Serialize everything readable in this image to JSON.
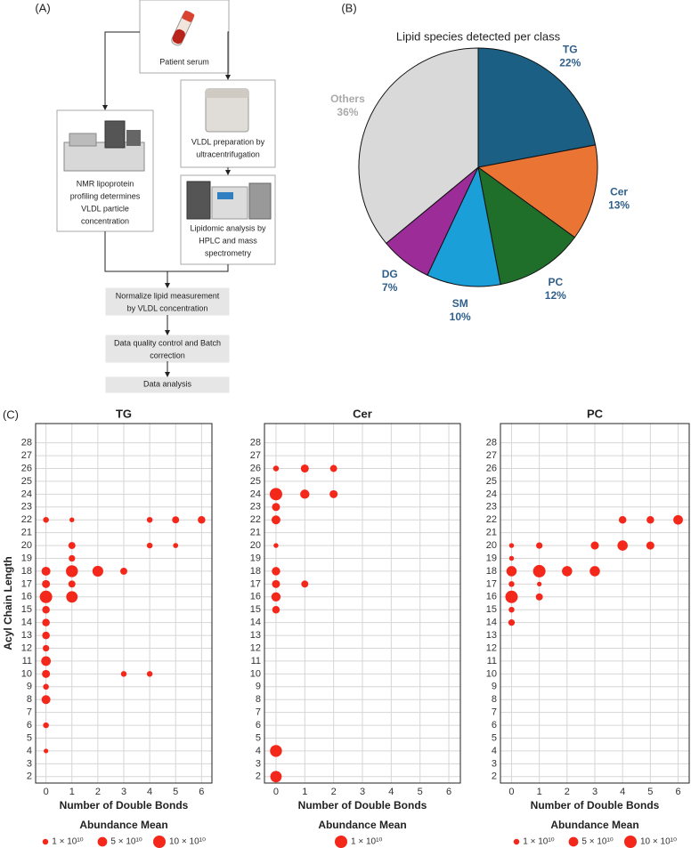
{
  "panel_labels": [
    "(A)",
    "(B)",
    "(C)"
  ],
  "diagram": {
    "nodes": [
      {
        "lines": [
          "Patient serum"
        ]
      },
      {
        "lines": [
          "NMR lipoprotein",
          "profiling determines",
          "VLDL particle",
          "concentration"
        ]
      },
      {
        "lines": [
          "VLDL preparation by",
          "ultracentrifugation"
        ]
      },
      {
        "lines": [
          "Lipidomic analysis by",
          "HPLC and mass",
          "spectrometry"
        ]
      },
      {
        "lines": [
          "Normalize lipid measurement",
          "by VLDL concentration"
        ]
      },
      {
        "lines": [
          "Data quality control and Batch",
          "correction"
        ]
      },
      {
        "lines": [
          "Data analysis"
        ]
      }
    ]
  },
  "chart_data": [
    {
      "type": "pie",
      "title": "Lipid species detected per class",
      "categories": [
        "TG",
        "Cer",
        "PC",
        "SM",
        "DG",
        "Others"
      ],
      "values": [
        22,
        13,
        12,
        10,
        7,
        36
      ],
      "value_labels": [
        "22%",
        "13%",
        "12%",
        "10%",
        "7%",
        "36%"
      ],
      "colors": [
        "#1b5f85",
        "#ea7434",
        "#1f6f2b",
        "#1a9fd8",
        "#9c2c98",
        "#d9d9d9"
      ],
      "label_colors": [
        "#2f5f8a",
        "#2f5f8a",
        "#2f5f8a",
        "#2f5f8a",
        "#2f5f8a",
        "#aaaaaa"
      ]
    },
    {
      "type": "bubble",
      "title": "TG",
      "x_label": "Number of Double Bonds",
      "y_label": "Acyl Chain Length",
      "color": "#f4271b",
      "grid": true,
      "xlim": [
        -0.4,
        6.4
      ],
      "xticks": [
        0,
        1,
        2,
        3,
        4,
        5,
        6
      ],
      "ylim": [
        1.5,
        29.5
      ],
      "yticks": [
        2,
        3,
        4,
        5,
        6,
        7,
        8,
        9,
        10,
        11,
        12,
        13,
        14,
        15,
        16,
        17,
        18,
        19,
        20,
        21,
        22,
        23,
        24,
        25,
        26,
        27,
        28
      ],
      "x": [
        0,
        1,
        4,
        5,
        6,
        1,
        4,
        5,
        1,
        0,
        1,
        2,
        3,
        0,
        1,
        0,
        1,
        0,
        0,
        0,
        0,
        0,
        0,
        0,
        0,
        0,
        0,
        3,
        4
      ],
      "values": [
        22,
        22,
        22,
        22,
        22,
        20,
        20,
        20,
        19,
        18,
        18,
        18,
        18,
        17,
        17,
        16,
        16,
        15,
        14,
        13,
        12,
        11,
        10,
        9,
        8,
        6,
        4,
        10,
        10
      ],
      "sizes": [
        10000000000.0,
        5000000000.0,
        10000000000.0,
        20000000000.0,
        25000000000.0,
        20000000000.0,
        10000000000.0,
        6000000000.0,
        15000000000.0,
        40000000000.0,
        90000000000.0,
        70000000000.0,
        20000000000.0,
        30000000000.0,
        20000000000.0,
        100000000000.0,
        80000000000.0,
        25000000000.0,
        25000000000.0,
        25000000000.0,
        15000000000.0,
        50000000000.0,
        30000000000.0,
        10000000000.0,
        40000000000.0,
        10000000000.0,
        4000000000.0,
        10000000000.0,
        10000000000.0
      ],
      "size_legend": {
        "title": "Abundance Mean",
        "values": [
          10000000000.0,
          50000000000.0,
          100000000000.0
        ],
        "labels": [
          "1 × 10¹⁰",
          "5 × 10¹⁰",
          "10 × 10¹⁰"
        ]
      }
    },
    {
      "type": "bubble",
      "title": "Cer",
      "x_label": "Number of Double Bonds",
      "color": "#f4271b",
      "grid": true,
      "xlim": [
        -0.4,
        6.4
      ],
      "xticks": [
        0,
        1,
        2,
        3,
        4,
        5,
        6
      ],
      "ylim": [
        1.5,
        29.5
      ],
      "yticks": [
        2,
        3,
        4,
        5,
        6,
        7,
        8,
        9,
        10,
        11,
        12,
        13,
        14,
        15,
        16,
        17,
        18,
        19,
        20,
        21,
        22,
        23,
        24,
        25,
        26,
        27,
        28
      ],
      "x": [
        0,
        1,
        2,
        0,
        1,
        2,
        0,
        0,
        0,
        0,
        1,
        0,
        0,
        0,
        0,
        0
      ],
      "values": [
        26,
        26,
        26,
        24,
        24,
        24,
        23,
        22,
        20,
        18,
        17,
        17,
        16,
        15,
        4,
        2
      ],
      "sizes": [
        1000000000.0,
        3000000000.0,
        2000000000.0,
        10000000000.0,
        4500000000.0,
        3000000000.0,
        3000000000.0,
        4000000000.0,
        500000000.0,
        3500000000.0,
        2000000000.0,
        3000000000.0,
        4500000000.0,
        2500000000.0,
        9000000000.0,
        8000000000.0
      ],
      "size_legend": {
        "title": "Abundance Mean",
        "values": [
          10000000000.0
        ],
        "labels": [
          "1 × 10¹⁰"
        ]
      }
    },
    {
      "type": "bubble",
      "title": "PC",
      "x_label": "Number of Double Bonds",
      "color": "#f4271b",
      "grid": true,
      "xlim": [
        -0.4,
        6.4
      ],
      "xticks": [
        0,
        1,
        2,
        3,
        4,
        5,
        6
      ],
      "ylim": [
        1.5,
        29.5
      ],
      "yticks": [
        2,
        3,
        4,
        5,
        6,
        7,
        8,
        9,
        10,
        11,
        12,
        13,
        14,
        15,
        16,
        17,
        18,
        19,
        20,
        21,
        22,
        23,
        24,
        25,
        26,
        27,
        28
      ],
      "x": [
        4,
        5,
        6,
        0,
        1,
        3,
        4,
        5,
        0,
        0,
        1,
        2,
        3,
        0,
        1,
        0,
        1,
        0,
        0
      ],
      "values": [
        22,
        22,
        22,
        20,
        20,
        20,
        20,
        20,
        19,
        18,
        18,
        18,
        18,
        17,
        17,
        16,
        16,
        15,
        14
      ],
      "sizes": [
        25000000000.0,
        25000000000.0,
        50000000000.0,
        5000000000.0,
        15000000000.0,
        30000000000.0,
        60000000000.0,
        30000000000.0,
        5000000000.0,
        60000000000.0,
        100000000000.0,
        60000000000.0,
        60000000000.0,
        10000000000.0,
        4000000000.0,
        100000000000.0,
        20000000000.0,
        10000000000.0,
        15000000000.0
      ],
      "size_legend": {
        "title": "Abundance Mean",
        "values": [
          10000000000.0,
          50000000000.0,
          100000000000.0
        ],
        "labels": [
          "1 × 10¹⁰",
          "5 × 10¹⁰",
          "10 × 10¹⁰"
        ]
      }
    }
  ]
}
